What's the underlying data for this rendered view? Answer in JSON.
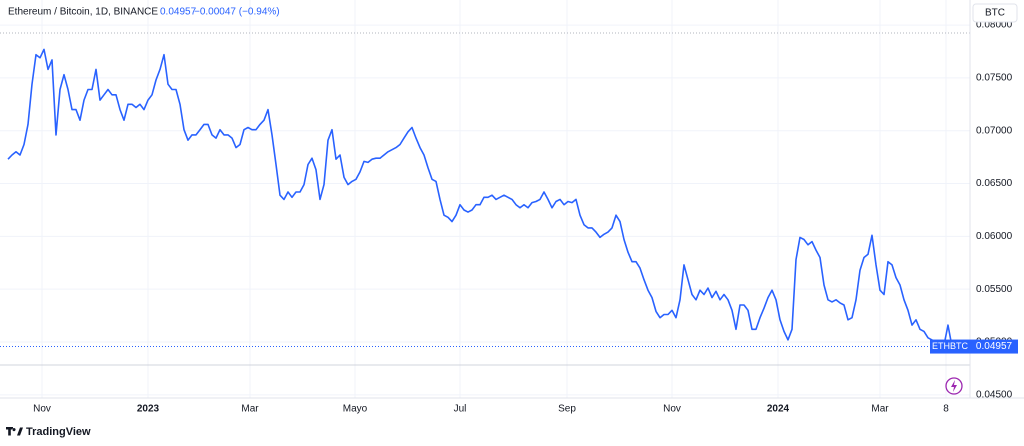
{
  "chart_data": {
    "type": "line",
    "title": "Ethereum / Bitcoin, 1D, BINANCE",
    "last_value": 0.04957,
    "change_label": "−0.00047 (−0.94%)",
    "currency_button": "BTC",
    "symbol": "ETHBTC",
    "brand": "TradingView",
    "series": [
      {
        "name": "ETHBTC",
        "color": "#2962ff",
        "values": [
          0.0673,
          0.0677,
          0.068,
          0.0677,
          0.0687,
          0.0706,
          0.0744,
          0.0772,
          0.0769,
          0.0777,
          0.0758,
          0.0767,
          0.0696,
          0.0739,
          0.0753,
          0.0739,
          0.072,
          0.072,
          0.071,
          0.0729,
          0.0739,
          0.0739,
          0.0758,
          0.0729,
          0.0734,
          0.0739,
          0.0734,
          0.0734,
          0.072,
          0.071,
          0.0725,
          0.0725,
          0.0722,
          0.0725,
          0.072,
          0.0729,
          0.0734,
          0.0748,
          0.0758,
          0.0772,
          0.0744,
          0.0739,
          0.0739,
          0.0725,
          0.0701,
          0.0691,
          0.0696,
          0.0696,
          0.0701,
          0.0706,
          0.0706,
          0.0696,
          0.0693,
          0.0701,
          0.0696,
          0.0696,
          0.0693,
          0.0684,
          0.0687,
          0.0701,
          0.0703,
          0.0701,
          0.0701,
          0.0706,
          0.071,
          0.072,
          0.0696,
          0.0668,
          0.0639,
          0.0635,
          0.0642,
          0.0637,
          0.0642,
          0.0642,
          0.0649,
          0.0668,
          0.0674,
          0.0663,
          0.0635,
          0.0649,
          0.0691,
          0.0701,
          0.0673,
          0.0677,
          0.0656,
          0.0649,
          0.0652,
          0.0654,
          0.0661,
          0.0671,
          0.067,
          0.0673,
          0.0674,
          0.0674,
          0.0677,
          0.068,
          0.0682,
          0.0684,
          0.0687,
          0.0693,
          0.0699,
          0.0703,
          0.0693,
          0.0684,
          0.0677,
          0.0665,
          0.0654,
          0.0652,
          0.0635,
          0.062,
          0.0618,
          0.0614,
          0.062,
          0.063,
          0.0625,
          0.0623,
          0.0625,
          0.063,
          0.063,
          0.0637,
          0.0637,
          0.0639,
          0.0635,
          0.0637,
          0.0639,
          0.0637,
          0.0635,
          0.063,
          0.0627,
          0.063,
          0.0627,
          0.0632,
          0.0633,
          0.0635,
          0.0642,
          0.0635,
          0.0627,
          0.0633,
          0.0635,
          0.063,
          0.0633,
          0.0632,
          0.0635,
          0.062,
          0.0611,
          0.0608,
          0.0608,
          0.0604,
          0.0599,
          0.0602,
          0.0604,
          0.0608,
          0.062,
          0.0614,
          0.0597,
          0.0585,
          0.0576,
          0.0576,
          0.057,
          0.0559,
          0.0549,
          0.0542,
          0.0529,
          0.0523,
          0.0526,
          0.0526,
          0.053,
          0.0523,
          0.054,
          0.0573,
          0.0559,
          0.0545,
          0.054,
          0.0549,
          0.0545,
          0.0551,
          0.0542,
          0.0548,
          0.054,
          0.0545,
          0.054,
          0.053,
          0.0512,
          0.0535,
          0.0535,
          0.053,
          0.0512,
          0.0512,
          0.0523,
          0.0532,
          0.0542,
          0.0549,
          0.054,
          0.0521,
          0.051,
          0.0502,
          0.0512,
          0.0578,
          0.0599,
          0.0597,
          0.0592,
          0.0595,
          0.0587,
          0.058,
          0.0554,
          0.054,
          0.0538,
          0.054,
          0.0537,
          0.0535,
          0.0521,
          0.0523,
          0.054,
          0.0568,
          0.058,
          0.0583,
          0.0601,
          0.0573,
          0.0549,
          0.0545,
          0.0576,
          0.0573,
          0.0561,
          0.0554,
          0.054,
          0.053,
          0.0516,
          0.0521,
          0.0512,
          0.051,
          0.0504,
          0.0502,
          0.0497,
          0.0493,
          0.0497,
          0.0516,
          0.04957
        ]
      }
    ],
    "ylim": [
      0.0447,
      0.0819
    ],
    "yticks": [
      {
        "value": 0.045,
        "label": "0.04500"
      },
      {
        "value": 0.05,
        "label": "0.05000"
      },
      {
        "value": 0.055,
        "label": "0.05500"
      },
      {
        "value": 0.06,
        "label": "0.06000"
      },
      {
        "value": 0.065,
        "label": "0.06500"
      },
      {
        "value": 0.07,
        "label": "0.07000"
      },
      {
        "value": 0.075,
        "label": "0.07500"
      },
      {
        "value": 0.08,
        "label": "0.08000"
      }
    ],
    "xticks": [
      {
        "value": 8.5,
        "label": "Nov"
      },
      {
        "value": 35,
        "label": "2023"
      },
      {
        "value": 60.5,
        "label": "Mar"
      },
      {
        "value": 86.75,
        "label": "Mayo"
      },
      {
        "value": 113,
        "label": "Jul"
      },
      {
        "value": 139.75,
        "label": "Sep"
      },
      {
        "value": 166,
        "label": "Nov"
      },
      {
        "value": 192.5,
        "label": "2024"
      },
      {
        "value": 218,
        "label": "Mar"
      },
      {
        "value": 234.5,
        "label": "8"
      }
    ],
    "grid": true
  }
}
